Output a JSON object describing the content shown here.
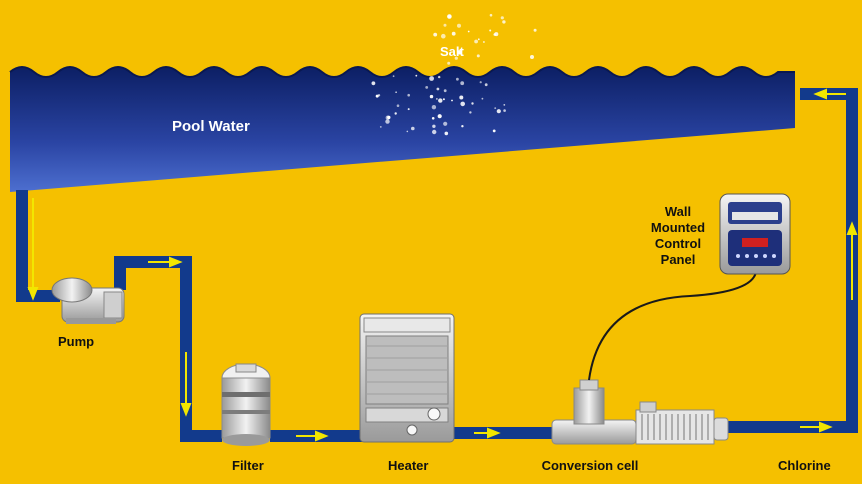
{
  "diagram": {
    "pool_label": "Pool Water",
    "salt_label": "Salt",
    "components": {
      "pump": "Pump",
      "filter": "Filter",
      "heater": "Heater",
      "conversion_cell": "Conversion cell",
      "chlorine": "Chlorine",
      "control_panel_line1": "Wall",
      "control_panel_line2": "Mounted",
      "control_panel_line3": "Control",
      "control_panel_line4": "Panel"
    }
  },
  "colors": {
    "background": "#f5c000",
    "pipe": "#123a8c",
    "flow_arrow": "#f2e600",
    "water_top": "#0c1f64",
    "water_bottom": "#3e5fc0"
  },
  "icons": [
    "pump-icon",
    "filter-icon",
    "heater-icon",
    "conversion-cell-icon",
    "control-panel-icon",
    "flow-arrow-icon",
    "salt-particles-icon"
  ]
}
